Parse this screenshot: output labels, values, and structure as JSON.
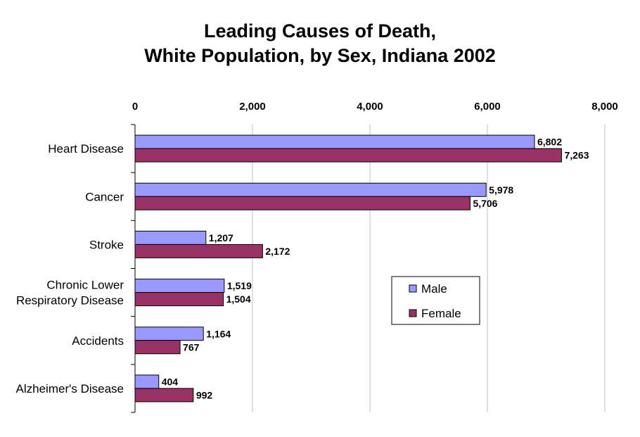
{
  "chart_data": {
    "type": "bar",
    "orientation": "horizontal",
    "title_lines": [
      "Leading Causes of Death,",
      "White Population, by Sex, Indiana 2002"
    ],
    "categories": [
      [
        "Heart Disease"
      ],
      [
        "Cancer"
      ],
      [
        "Stroke"
      ],
      [
        "Chronic Lower",
        "Respiratory Disease"
      ],
      [
        "Accidents"
      ],
      [
        "Alzheimer's Disease"
      ]
    ],
    "series": [
      {
        "name": "Male",
        "color": "#9999ff",
        "values": [
          6802,
          5978,
          1207,
          1519,
          1164,
          404
        ],
        "labels": [
          "6,802",
          "5,978",
          "1,207",
          "1,519",
          "1,164",
          "404"
        ]
      },
      {
        "name": "Female",
        "color": "#993366",
        "values": [
          7263,
          5706,
          2172,
          1504,
          767,
          992
        ],
        "labels": [
          "7,263",
          "5,706",
          "2,172",
          "1,504",
          "767",
          "992"
        ]
      }
    ],
    "xlim": [
      0,
      8000
    ],
    "x_ticks": [
      0,
      2000,
      4000,
      6000,
      8000
    ],
    "x_tick_labels": [
      "0",
      "2,000",
      "4,000",
      "6,000",
      "8,000"
    ],
    "x_axis_position": "top",
    "gridlines": true,
    "legend_position": "right"
  }
}
